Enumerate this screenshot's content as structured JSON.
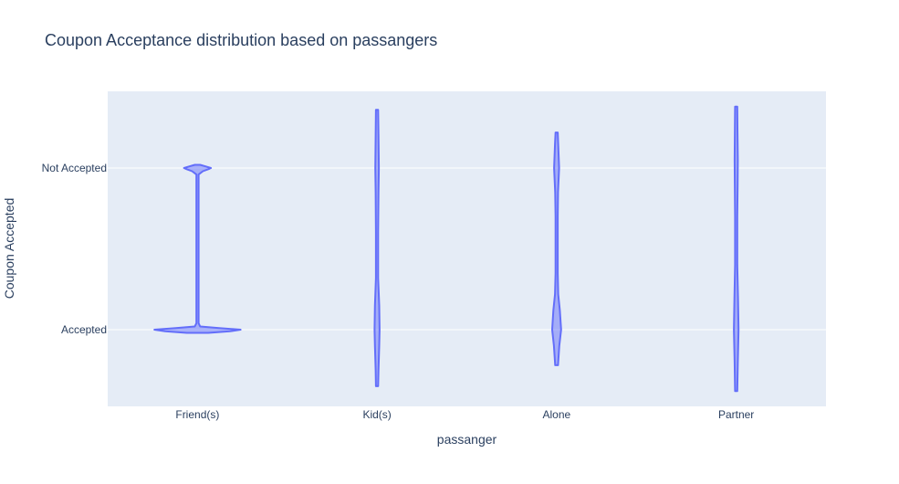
{
  "chart_data": {
    "type": "violin",
    "title": "Coupon Acceptance distribution based on passangers",
    "xlabel": "passanger",
    "ylabel": "Coupon Accepted",
    "categories": [
      "Friend(s)",
      "Kid(s)",
      "Alone",
      "Partner"
    ],
    "y_categories": [
      "Accepted",
      "Not Accepted"
    ],
    "grid": true,
    "legend": "none",
    "colors": {
      "plot_bg": "#e5ecf6",
      "grid": "#ffffff",
      "violin_line": "#636efa",
      "violin_fill": "#636efa",
      "text": "#2a3f5f"
    },
    "series": [
      {
        "category": "Friend(s)",
        "profile": [
          {
            "y": -0.02,
            "w": 0.12
          },
          {
            "y": -0.01,
            "w": 0.36
          },
          {
            "y": 0.0,
            "w": 0.48
          },
          {
            "y": 0.01,
            "w": 0.24
          },
          {
            "y": 0.02,
            "w": 0.03
          },
          {
            "y": 0.04,
            "w": 0.012
          },
          {
            "y": 0.96,
            "w": 0.012
          },
          {
            "y": 0.98,
            "w": 0.06
          },
          {
            "y": 0.995,
            "w": 0.13
          },
          {
            "y": 1.0,
            "w": 0.15
          },
          {
            "y": 1.01,
            "w": 0.09
          },
          {
            "y": 1.02,
            "w": 0.03
          }
        ]
      },
      {
        "category": "Kid(s)",
        "profile": [
          {
            "y": -0.35,
            "w": 0.012
          },
          {
            "y": -0.25,
            "w": 0.016
          },
          {
            "y": -0.1,
            "w": 0.024
          },
          {
            "y": 0.0,
            "w": 0.028
          },
          {
            "y": 0.15,
            "w": 0.024
          },
          {
            "y": 0.32,
            "w": 0.012
          },
          {
            "y": 0.6,
            "w": 0.012
          },
          {
            "y": 0.85,
            "w": 0.016
          },
          {
            "y": 1.0,
            "w": 0.02
          },
          {
            "y": 1.2,
            "w": 0.016
          },
          {
            "y": 1.36,
            "w": 0.012
          }
        ]
      },
      {
        "category": "Alone",
        "profile": [
          {
            "y": -0.22,
            "w": 0.016
          },
          {
            "y": -0.1,
            "w": 0.03
          },
          {
            "y": 0.0,
            "w": 0.05
          },
          {
            "y": 0.12,
            "w": 0.036
          },
          {
            "y": 0.22,
            "w": 0.018
          },
          {
            "y": 0.35,
            "w": 0.012
          },
          {
            "y": 0.7,
            "w": 0.012
          },
          {
            "y": 0.85,
            "w": 0.016
          },
          {
            "y": 1.0,
            "w": 0.028
          },
          {
            "y": 1.15,
            "w": 0.018
          },
          {
            "y": 1.22,
            "w": 0.012
          }
        ]
      },
      {
        "category": "Partner",
        "profile": [
          {
            "y": -0.38,
            "w": 0.012
          },
          {
            "y": -0.2,
            "w": 0.018
          },
          {
            "y": 0.0,
            "w": 0.026
          },
          {
            "y": 0.2,
            "w": 0.02
          },
          {
            "y": 0.4,
            "w": 0.012
          },
          {
            "y": 0.7,
            "w": 0.012
          },
          {
            "y": 0.9,
            "w": 0.016
          },
          {
            "y": 1.05,
            "w": 0.018
          },
          {
            "y": 1.25,
            "w": 0.014
          },
          {
            "y": 1.38,
            "w": 0.012
          }
        ]
      }
    ]
  }
}
